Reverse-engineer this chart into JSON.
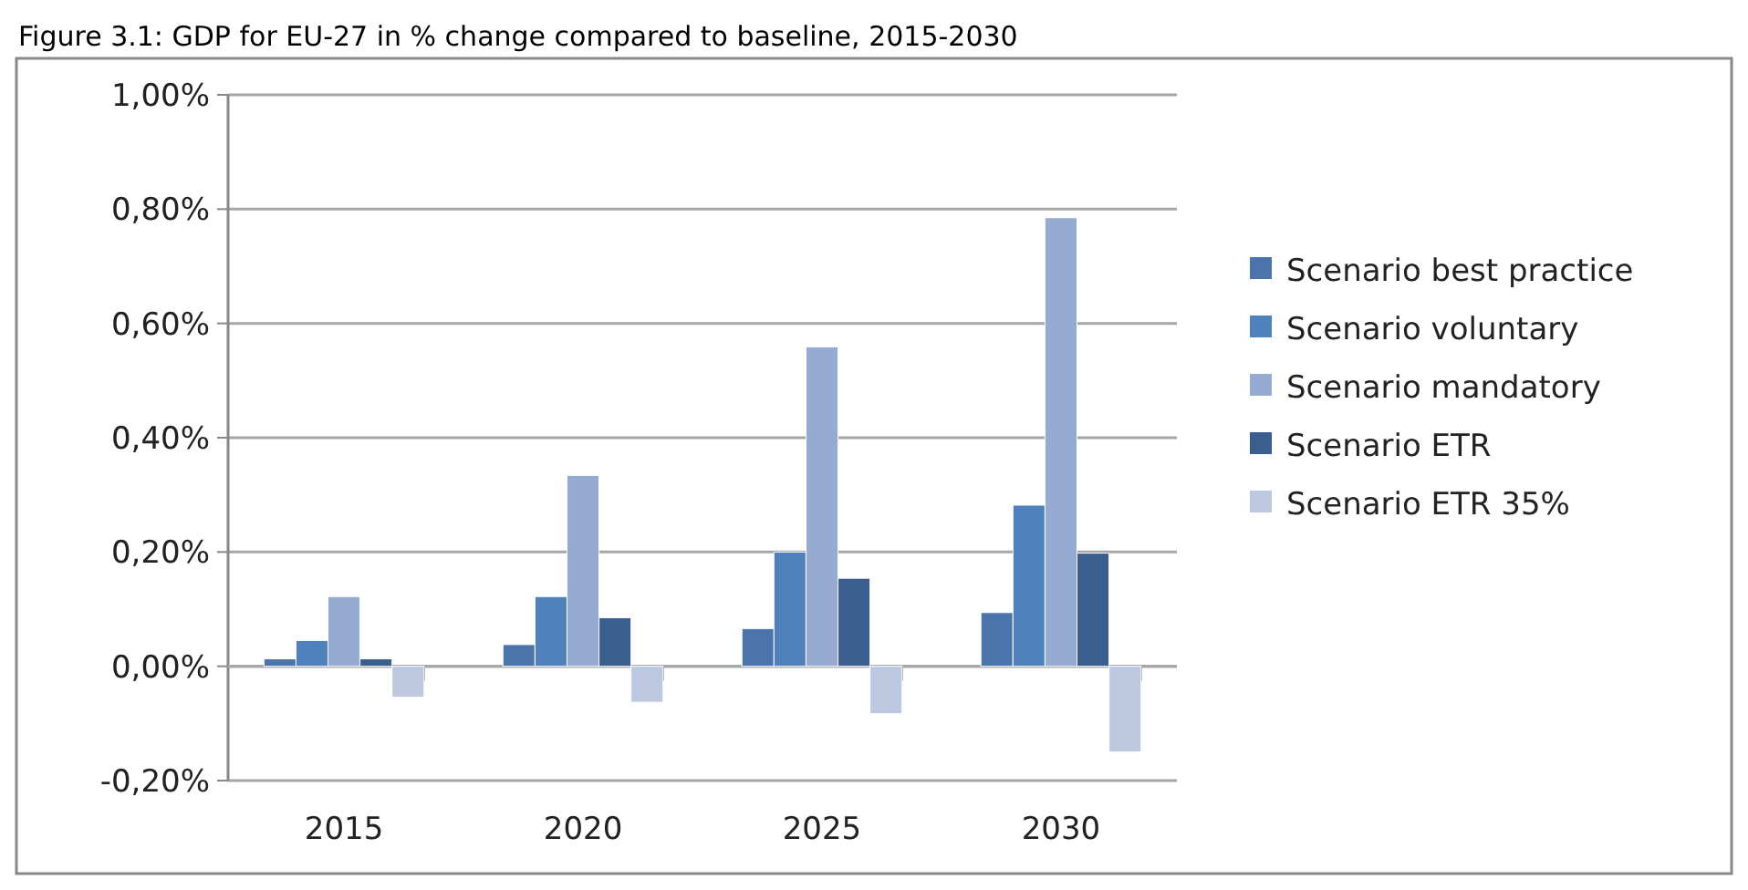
{
  "chart_data": {
    "type": "bar",
    "title": "Figure 3.1: GDP for EU-27 in % change compared to baseline, 2015-2030",
    "categories": [
      "2015",
      "2020",
      "2025",
      "2030"
    ],
    "series": [
      {
        "name": "Scenario best practice",
        "color": "#4a74aa",
        "values": [
          0.013,
          0.038,
          0.066,
          0.094
        ]
      },
      {
        "name": "Scenario voluntary",
        "color": "#4f81bd",
        "values": [
          0.045,
          0.122,
          0.2,
          0.282
        ]
      },
      {
        "name": "Scenario mandatory",
        "color": "#95abd2",
        "values": [
          0.122,
          0.334,
          0.559,
          0.785
        ]
      },
      {
        "name": "Scenario ETR",
        "color": "#3a5f8f",
        "values": [
          0.013,
          0.085,
          0.154,
          0.198
        ]
      },
      {
        "name": "Scenario ETR 35%",
        "color": "#bcc8e0",
        "values": [
          -0.054,
          -0.063,
          -0.083,
          -0.15
        ]
      }
    ],
    "ylim": [
      -0.2,
      1
    ],
    "yticks": [
      {
        "value": -0.2,
        "label": "-0,20%"
      },
      {
        "value": 0,
        "label": "0,00%"
      },
      {
        "value": 0.2,
        "label": "0,20%"
      },
      {
        "value": 0.4,
        "label": "0,40%"
      },
      {
        "value": 0.6,
        "label": "0,60%"
      },
      {
        "value": 0.8,
        "label": "0,80%"
      },
      {
        "value": 1,
        "label": "1,00%"
      }
    ],
    "grid": "y",
    "legend": "right"
  }
}
